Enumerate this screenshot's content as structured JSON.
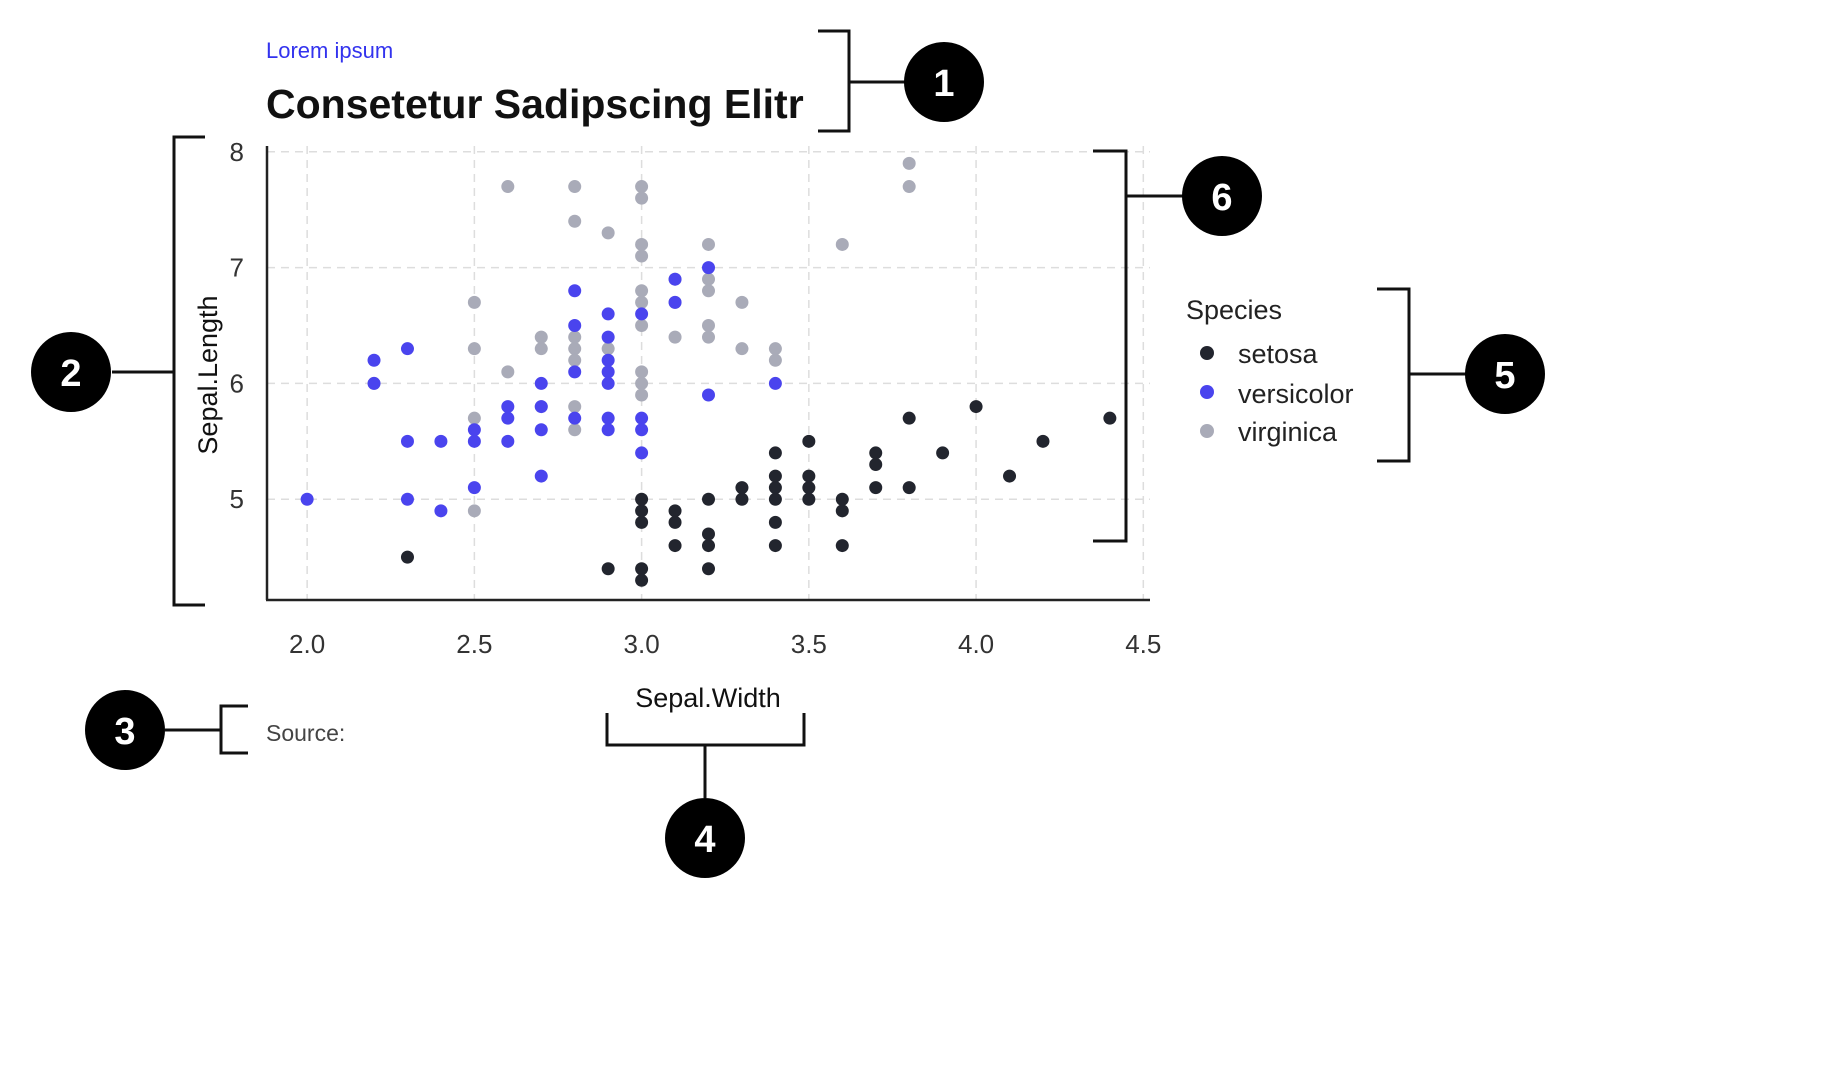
{
  "header": {
    "subtitle": "Lorem ipsum",
    "title": "Consetetur Sadipscing Elitr"
  },
  "caption": {
    "source": "Source:"
  },
  "badges": [
    "1",
    "2",
    "3",
    "4",
    "5",
    "6"
  ],
  "colors": {
    "setosa": "#22252e",
    "versicolor": "#4a44ee",
    "virginica": "#a9abb8"
  },
  "chart_data": {
    "type": "scatter",
    "xlabel": "Sepal.Width",
    "ylabel": "Sepal.Length",
    "xlim": [
      1.88,
      4.52
    ],
    "ylim": [
      4.13,
      8.05
    ],
    "xticks": [
      "2.0",
      "2.5",
      "3.0",
      "3.5",
      "4.0",
      "4.5"
    ],
    "yticks": [
      "5",
      "6",
      "7",
      "8"
    ],
    "grid": true,
    "legend": {
      "title": "Species",
      "position": "right"
    },
    "series": [
      {
        "name": "setosa",
        "points": [
          [
            2.3,
            4.5
          ],
          [
            2.9,
            4.4
          ],
          [
            3.0,
            4.4
          ],
          [
            3.0,
            4.3
          ],
          [
            3.0,
            4.8
          ],
          [
            3.0,
            4.9
          ],
          [
            3.0,
            5.0
          ],
          [
            3.1,
            4.9
          ],
          [
            3.1,
            4.8
          ],
          [
            3.1,
            4.6
          ],
          [
            3.2,
            4.4
          ],
          [
            3.2,
            4.6
          ],
          [
            3.2,
            4.7
          ],
          [
            3.2,
            5.0
          ],
          [
            3.3,
            5.0
          ],
          [
            3.3,
            5.1
          ],
          [
            3.4,
            4.6
          ],
          [
            3.4,
            4.8
          ],
          [
            3.4,
            5.0
          ],
          [
            3.4,
            5.1
          ],
          [
            3.4,
            5.2
          ],
          [
            3.4,
            5.4
          ],
          [
            3.5,
            5.0
          ],
          [
            3.5,
            5.1
          ],
          [
            3.5,
            5.2
          ],
          [
            3.5,
            5.5
          ],
          [
            3.6,
            4.6
          ],
          [
            3.6,
            4.9
          ],
          [
            3.6,
            5.0
          ],
          [
            3.7,
            5.1
          ],
          [
            3.7,
            5.3
          ],
          [
            3.7,
            5.4
          ],
          [
            3.8,
            5.1
          ],
          [
            3.8,
            5.7
          ],
          [
            3.9,
            5.4
          ],
          [
            4.0,
            5.8
          ],
          [
            4.1,
            5.2
          ],
          [
            4.2,
            5.5
          ],
          [
            4.4,
            5.7
          ]
        ]
      },
      {
        "name": "versicolor",
        "points": [
          [
            2.0,
            5.0
          ],
          [
            2.2,
            6.2
          ],
          [
            2.2,
            6.0
          ],
          [
            2.3,
            6.3
          ],
          [
            2.3,
            5.5
          ],
          [
            2.3,
            5.0
          ],
          [
            2.4,
            5.5
          ],
          [
            2.4,
            4.9
          ],
          [
            2.5,
            5.6
          ],
          [
            2.5,
            5.5
          ],
          [
            2.5,
            5.1
          ],
          [
            2.6,
            5.8
          ],
          [
            2.6,
            5.7
          ],
          [
            2.6,
            5.5
          ],
          [
            2.7,
            6.0
          ],
          [
            2.7,
            5.8
          ],
          [
            2.7,
            5.6
          ],
          [
            2.7,
            5.2
          ],
          [
            2.8,
            6.8
          ],
          [
            2.8,
            6.5
          ],
          [
            2.8,
            6.1
          ],
          [
            2.8,
            5.7
          ],
          [
            2.9,
            6.6
          ],
          [
            2.9,
            6.4
          ],
          [
            2.9,
            6.2
          ],
          [
            2.9,
            6.1
          ],
          [
            2.9,
            6.0
          ],
          [
            2.9,
            5.7
          ],
          [
            2.9,
            5.6
          ],
          [
            3.0,
            6.6
          ],
          [
            3.0,
            5.7
          ],
          [
            3.0,
            5.6
          ],
          [
            3.0,
            5.4
          ],
          [
            3.1,
            6.9
          ],
          [
            3.1,
            6.7
          ],
          [
            3.2,
            7.0
          ],
          [
            3.2,
            5.9
          ],
          [
            3.4,
            6.0
          ]
        ]
      },
      {
        "name": "virginica",
        "points": [
          [
            2.2,
            6.0
          ],
          [
            2.5,
            6.7
          ],
          [
            2.5,
            6.3
          ],
          [
            2.5,
            5.7
          ],
          [
            2.5,
            4.9
          ],
          [
            2.6,
            7.7
          ],
          [
            2.6,
            6.1
          ],
          [
            2.7,
            6.4
          ],
          [
            2.7,
            6.3
          ],
          [
            2.7,
            5.8
          ],
          [
            2.8,
            7.7
          ],
          [
            2.8,
            7.4
          ],
          [
            2.8,
            6.4
          ],
          [
            2.8,
            6.3
          ],
          [
            2.8,
            6.2
          ],
          [
            2.8,
            5.8
          ],
          [
            2.8,
            5.6
          ],
          [
            2.9,
            7.3
          ],
          [
            2.9,
            6.3
          ],
          [
            3.0,
            7.7
          ],
          [
            3.0,
            7.6
          ],
          [
            3.0,
            7.2
          ],
          [
            3.0,
            7.1
          ],
          [
            3.0,
            6.8
          ],
          [
            3.0,
            6.7
          ],
          [
            3.0,
            6.5
          ],
          [
            3.0,
            6.1
          ],
          [
            3.0,
            6.0
          ],
          [
            3.0,
            5.9
          ],
          [
            3.1,
            6.9
          ],
          [
            3.1,
            6.7
          ],
          [
            3.1,
            6.4
          ],
          [
            3.2,
            7.2
          ],
          [
            3.2,
            6.9
          ],
          [
            3.2,
            6.8
          ],
          [
            3.2,
            6.5
          ],
          [
            3.2,
            6.4
          ],
          [
            3.3,
            6.7
          ],
          [
            3.3,
            6.3
          ],
          [
            3.4,
            6.3
          ],
          [
            3.4,
            6.2
          ],
          [
            3.6,
            7.2
          ],
          [
            3.8,
            7.9
          ],
          [
            3.8,
            7.7
          ]
        ]
      }
    ]
  }
}
